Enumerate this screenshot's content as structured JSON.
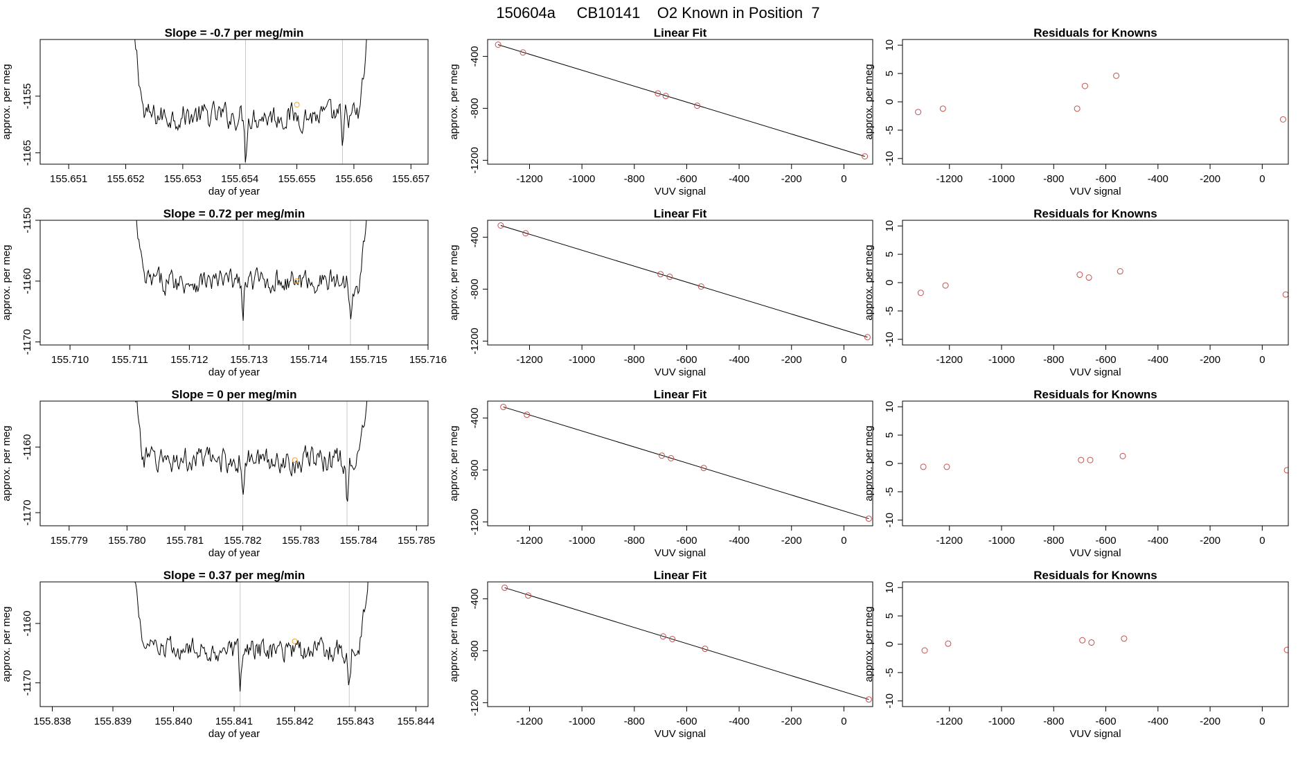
{
  "page_title": "150604a     CB10141    O2 Known in Position  7",
  "colors": {
    "trace": "#000000",
    "marker": "#f0a030",
    "points": "#c0504d",
    "vline": "#c8c8c8",
    "axis": "#000000"
  },
  "chart_data": [
    {
      "row": 1,
      "type": "line",
      "title": "Slope =  -0.7  per meg/min",
      "xlabel": "day of year",
      "ylabel": "approx. per meg",
      "xlim": [
        155.6505,
        155.6573
      ],
      "ylim": [
        -1167,
        -1145
      ],
      "xticks": [
        "155.651",
        "155.652",
        "155.653",
        "155.654",
        "155.655",
        "155.656",
        "155.657"
      ],
      "yticks": [
        "-1165",
        "-1155"
      ],
      "vlines": [
        155.6541,
        155.6558
      ],
      "marker": [
        155.655,
        -1156.5
      ],
      "noise_center": -1158.5,
      "noise_amp": 3.5
    },
    {
      "row": 1,
      "type": "scatter+line",
      "title": "Linear Fit",
      "xlabel": "VUV signal",
      "ylabel": "approx. per meg",
      "xlim": [
        -1360,
        110
      ],
      "ylim": [
        -1230,
        -270
      ],
      "xticks": [
        "-1200",
        "-1000",
        "-800",
        "-600",
        "-400",
        "-200",
        "0"
      ],
      "yticks": [
        "-400",
        "-800",
        "-1200"
      ],
      "points": [
        [
          -1320,
          -310
        ],
        [
          -1225,
          -370
        ],
        [
          -710,
          -685
        ],
        [
          -680,
          -705
        ],
        [
          -560,
          -780
        ],
        [
          80,
          -1170
        ]
      ],
      "fit": [
        [
          -1320,
          -310
        ],
        [
          80,
          -1170
        ]
      ]
    },
    {
      "row": 1,
      "type": "scatter",
      "title": "Residuals for Knowns",
      "xlabel": "VUV signal",
      "ylabel": "approx. per meg",
      "xlim": [
        -1380,
        100
      ],
      "ylim": [
        -11,
        11
      ],
      "xticks": [
        "-1200",
        "-1000",
        "-800",
        "-600",
        "-400",
        "-200",
        "0"
      ],
      "yticks": [
        "10",
        "5",
        "0",
        "-5",
        "-10"
      ],
      "points": [
        [
          -1320,
          -1.8
        ],
        [
          -1225,
          -1.2
        ],
        [
          -710,
          -1.2
        ],
        [
          -680,
          2.8
        ],
        [
          -560,
          4.6
        ],
        [
          80,
          -3.1
        ]
      ]
    },
    {
      "row": 2,
      "type": "line",
      "title": "Slope =  0.72  per meg/min",
      "xlabel": "day of year",
      "ylabel": "approx. per meg",
      "xlim": [
        155.7095,
        155.716
      ],
      "ylim": [
        -1170.5,
        -1150
      ],
      "xticks": [
        "155.710",
        "155.711",
        "155.712",
        "155.713",
        "155.714",
        "155.715",
        "155.716"
      ],
      "yticks": [
        "-1150",
        "-1160",
        "-1170"
      ],
      "vlines": [
        155.7129,
        155.7147
      ],
      "marker": [
        155.7138,
        -1160
      ],
      "noise_center": -1160,
      "noise_amp": 3
    },
    {
      "row": 2,
      "type": "scatter+line",
      "title": "Linear Fit",
      "xlabel": "VUV signal",
      "ylabel": "approx. per meg",
      "xlim": [
        -1360,
        110
      ],
      "ylim": [
        -1230,
        -270
      ],
      "xticks": [
        "-1200",
        "-1000",
        "-800",
        "-600",
        "-400",
        "-200",
        "0"
      ],
      "yticks": [
        "-400",
        "-800",
        "-1200"
      ],
      "points": [
        [
          -1310,
          -310
        ],
        [
          -1215,
          -370
        ],
        [
          -700,
          -685
        ],
        [
          -665,
          -705
        ],
        [
          -545,
          -780
        ],
        [
          90,
          -1170
        ]
      ],
      "fit": [
        [
          -1310,
          -310
        ],
        [
          90,
          -1170
        ]
      ]
    },
    {
      "row": 2,
      "type": "scatter",
      "title": "Residuals for Knowns",
      "xlabel": "VUV signal",
      "ylabel": "approx. per meg",
      "xlim": [
        -1380,
        100
      ],
      "ylim": [
        -11,
        11
      ],
      "xticks": [
        "-1200",
        "-1000",
        "-800",
        "-600",
        "-400",
        "-200",
        "0"
      ],
      "yticks": [
        "10",
        "5",
        "0",
        "-5",
        "-10"
      ],
      "points": [
        [
          -1310,
          -1.8
        ],
        [
          -1215,
          -0.5
        ],
        [
          -700,
          1.4
        ],
        [
          -665,
          0.9
        ],
        [
          -545,
          2.0
        ],
        [
          90,
          -2.1
        ]
      ]
    },
    {
      "row": 3,
      "type": "line",
      "title": "Slope =  0  per meg/min",
      "xlabel": "day of year",
      "ylabel": "approx. per meg",
      "xlim": [
        155.7785,
        155.7852
      ],
      "ylim": [
        -1172,
        -1153
      ],
      "xticks": [
        "155.779",
        "155.780",
        "155.781",
        "155.782",
        "155.783",
        "155.784",
        "155.785"
      ],
      "yticks": [
        "-1160",
        "-1170"
      ],
      "vlines": [
        155.782,
        155.7838
      ],
      "marker": [
        155.7829,
        -1162
      ],
      "noise_center": -1162,
      "noise_amp": 3
    },
    {
      "row": 3,
      "type": "scatter+line",
      "title": "Linear Fit",
      "xlabel": "VUV signal",
      "ylabel": "approx. per meg",
      "xlim": [
        -1360,
        110
      ],
      "ylim": [
        -1230,
        -270
      ],
      "xticks": [
        "-1200",
        "-1000",
        "-800",
        "-600",
        "-400",
        "-200",
        "0"
      ],
      "yticks": [
        "-400",
        "-800",
        "-1200"
      ],
      "points": [
        [
          -1300,
          -315
        ],
        [
          -1210,
          -375
        ],
        [
          -695,
          -690
        ],
        [
          -660,
          -710
        ],
        [
          -535,
          -785
        ],
        [
          95,
          -1175
        ]
      ],
      "fit": [
        [
          -1300,
          -315
        ],
        [
          95,
          -1175
        ]
      ]
    },
    {
      "row": 3,
      "type": "scatter",
      "title": "Residuals for Knowns",
      "xlabel": "VUV signal",
      "ylabel": "approx. per meg",
      "xlim": [
        -1380,
        100
      ],
      "ylim": [
        -11,
        11
      ],
      "xticks": [
        "-1200",
        "-1000",
        "-800",
        "-600",
        "-400",
        "-200",
        "0"
      ],
      "yticks": [
        "10",
        "5",
        "0",
        "-5",
        "-10"
      ],
      "points": [
        [
          -1300,
          -0.6
        ],
        [
          -1210,
          -0.6
        ],
        [
          -695,
          0.6
        ],
        [
          -660,
          0.6
        ],
        [
          -535,
          1.3
        ],
        [
          95,
          -1.2
        ]
      ]
    },
    {
      "row": 4,
      "type": "line",
      "title": "Slope =  0.37  per meg/min",
      "xlabel": "day of year",
      "ylabel": "approx. per meg",
      "xlim": [
        155.8378,
        155.8442
      ],
      "ylim": [
        -1174,
        -1153
      ],
      "xticks": [
        "155.838",
        "155.839",
        "155.840",
        "155.841",
        "155.842",
        "155.843",
        "155.844"
      ],
      "yticks": [
        "-1160",
        "-1170"
      ],
      "vlines": [
        155.8411,
        155.8429
      ],
      "marker": [
        155.842,
        -1163
      ],
      "noise_center": -1164.5,
      "noise_amp": 3
    },
    {
      "row": 4,
      "type": "scatter+line",
      "title": "Linear Fit",
      "xlabel": "VUV signal",
      "ylabel": "approx. per meg",
      "xlim": [
        -1360,
        110
      ],
      "ylim": [
        -1230,
        -270
      ],
      "xticks": [
        "-1200",
        "-1000",
        "-800",
        "-600",
        "-400",
        "-200",
        "0"
      ],
      "yticks": [
        "-400",
        "-800",
        "-1200"
      ],
      "points": [
        [
          -1295,
          -315
        ],
        [
          -1205,
          -375
        ],
        [
          -690,
          -690
        ],
        [
          -655,
          -710
        ],
        [
          -530,
          -785
        ],
        [
          95,
          -1175
        ]
      ],
      "fit": [
        [
          -1295,
          -315
        ],
        [
          95,
          -1175
        ]
      ]
    },
    {
      "row": 4,
      "type": "scatter",
      "title": "Residuals for Knowns",
      "xlabel": "VUV signal",
      "ylabel": "approx. per meg",
      "xlim": [
        -1380,
        100
      ],
      "ylim": [
        -11,
        11
      ],
      "xticks": [
        "-1200",
        "-1000",
        "-800",
        "-600",
        "-400",
        "-200",
        "0"
      ],
      "yticks": [
        "10",
        "5",
        "0",
        "-5",
        "-10"
      ],
      "points": [
        [
          -1295,
          -1.1
        ],
        [
          -1205,
          0.1
        ],
        [
          -690,
          0.7
        ],
        [
          -655,
          0.3
        ],
        [
          -530,
          1.0
        ],
        [
          95,
          -1.0
        ]
      ]
    }
  ]
}
